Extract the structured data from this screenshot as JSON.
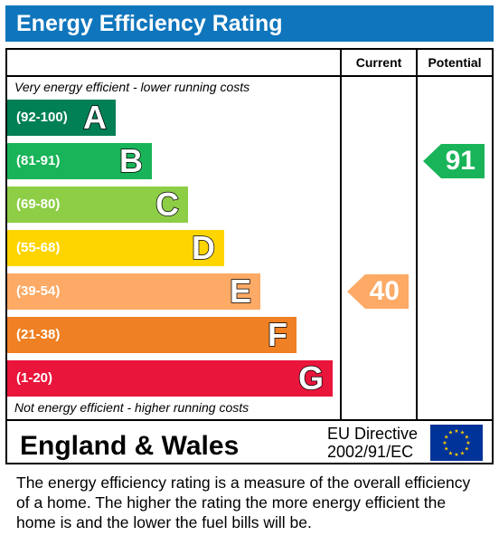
{
  "title": "Energy Efficiency Rating",
  "columns": {
    "current": "Current",
    "potential": "Potential"
  },
  "top_note": "Very energy efficient - lower running costs",
  "bottom_note": "Not energy efficient - higher running costs",
  "chart_data": {
    "type": "bar",
    "categories": [
      "A",
      "B",
      "C",
      "D",
      "E",
      "F",
      "G"
    ],
    "ranges": [
      "(92-100)",
      "(81-91)",
      "(69-80)",
      "(55-68)",
      "(39-54)",
      "(21-38)",
      "(1-20)"
    ],
    "colors": [
      "#008054",
      "#19b459",
      "#8dce46",
      "#ffd500",
      "#fcaa65",
      "#ef8023",
      "#e9153b"
    ],
    "current": {
      "value": 40,
      "band": "E",
      "color": "#fcaa65"
    },
    "potential": {
      "value": 91,
      "band": "B",
      "color": "#19b459"
    }
  },
  "footer": {
    "country": "England & Wales",
    "directive_line1": "EU Directive",
    "directive_line2": "2002/91/EC"
  },
  "description": "The energy efficiency rating is a measure of the overall efficiency of a home.  The higher the rating the more energy efficient the home is and the lower the fuel bills will be."
}
